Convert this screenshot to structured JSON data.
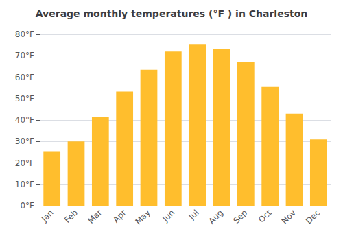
{
  "chart_data": {
    "type": "bar",
    "title": "Average monthly temperatures (°F ) in Charleston",
    "categories": [
      "Jan",
      "Feb",
      "Mar",
      "Apr",
      "May",
      "Jun",
      "Jul",
      "Aug",
      "Sep",
      "Oct",
      "Nov",
      "Dec"
    ],
    "values": [
      25.5,
      30.0,
      41.5,
      53.3,
      63.5,
      72.0,
      75.5,
      73.0,
      67.0,
      55.5,
      43.0,
      31.0
    ],
    "color": "#FFBE2D",
    "ylim": [
      0,
      82
    ],
    "yticks": [
      {
        "value": 0,
        "label": "0°F"
      },
      {
        "value": 10,
        "label": "10°F"
      },
      {
        "value": 20,
        "label": "20°F"
      },
      {
        "value": 30,
        "label": "30°F"
      },
      {
        "value": 40,
        "label": "40°F"
      },
      {
        "value": 50,
        "label": "50°F"
      },
      {
        "value": 60,
        "label": "60°F"
      },
      {
        "value": 70,
        "label": "70°F"
      },
      {
        "value": 80,
        "label": "80°F"
      }
    ],
    "grid": true
  }
}
